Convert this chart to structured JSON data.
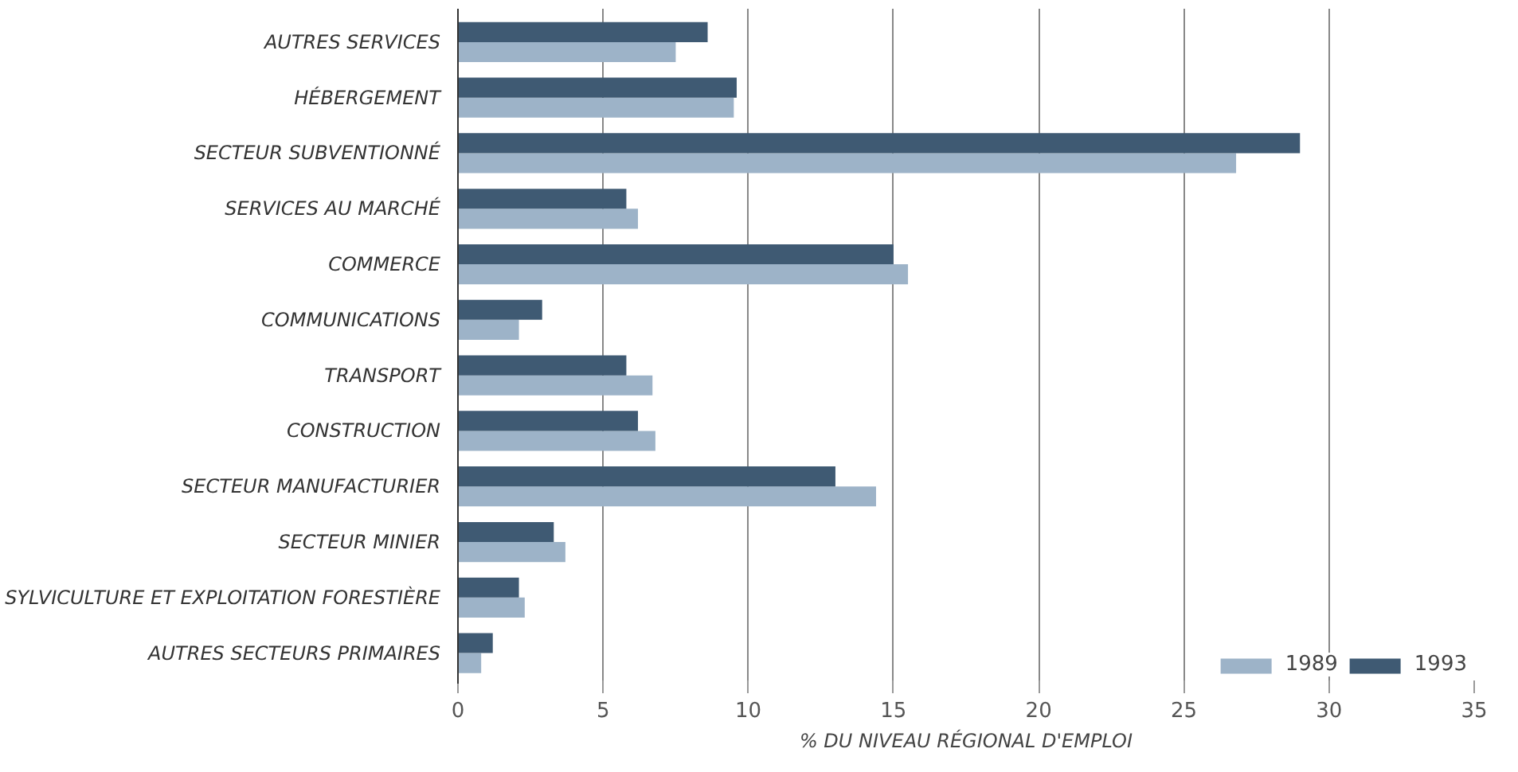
{
  "chart_data": {
    "type": "bar",
    "orientation": "horizontal",
    "xlabel": "% DU NIVEAU RÉGIONAL D'EMPLOI",
    "categories": [
      "AUTRES SERVICES",
      "HÉBERGEMENT",
      "SECTEUR SUBVENTIONNÉ",
      "SERVICES AU MARCHÉ",
      "COMMERCE",
      "COMMUNICATIONS",
      "TRANSPORT",
      "CONSTRUCTION",
      "SECTEUR MANUFACTURIER",
      "SECTEUR MINIER",
      "SYLVICULTURE ET EXPLOITATION FORESTIÈRE",
      "AUTRES SECTEURS PRIMAIRES"
    ],
    "series": [
      {
        "name": "1989",
        "color": "#9db3c8",
        "values": [
          7.5,
          9.5,
          26.8,
          6.2,
          15.5,
          2.1,
          6.7,
          6.8,
          14.4,
          3.7,
          2.3,
          0.8
        ]
      },
      {
        "name": "1993",
        "color": "#3f5a73",
        "values": [
          8.6,
          9.6,
          29.0,
          5.8,
          15.0,
          2.9,
          5.8,
          6.2,
          13.0,
          3.3,
          2.1,
          1.2
        ]
      }
    ],
    "xlim": [
      0,
      35
    ],
    "xticks": [
      0,
      5,
      10,
      15,
      20,
      25,
      30,
      35
    ],
    "grid": "x",
    "legend": "bottom right"
  }
}
